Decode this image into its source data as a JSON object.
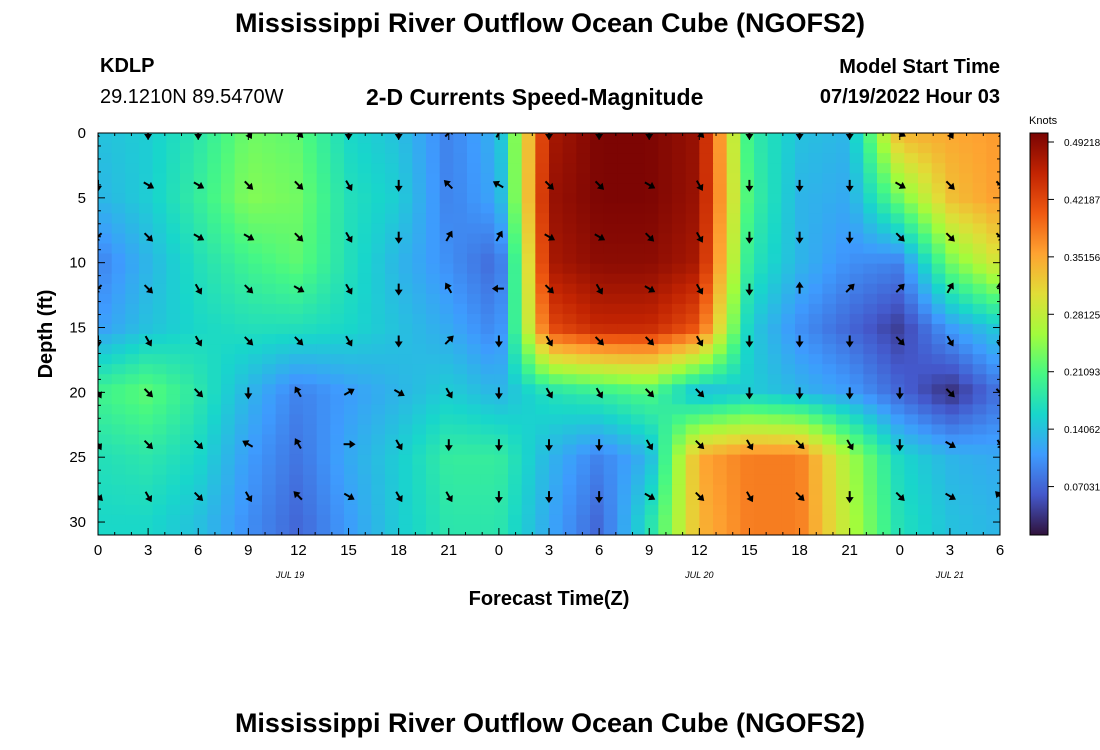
{
  "header": {
    "title": "Mississippi River Outflow Ocean Cube (NGOFS2)",
    "station_id": "KDLP",
    "station_coords": "29.1210N  89.5470W",
    "subtitle": "2-D Currents Speed-Magnitude",
    "model_start_label": "Model Start Time",
    "model_start_value": "07/19/2022 Hour 03"
  },
  "footer": {
    "next_title": "Mississippi River Outflow Ocean Cube (NGOFS2)"
  },
  "chart_data": {
    "type": "heatmap",
    "xlabel": "Forecast Time(Z)",
    "ylabel": "Depth (ft)",
    "x_range_hours": [
      0,
      54
    ],
    "y_range_ft": [
      0,
      31
    ],
    "y_inverted": true,
    "x_ticks": [
      "0",
      "3",
      "6",
      "9",
      "12",
      "15",
      "18",
      "21",
      "0",
      "3",
      "6",
      "9",
      "12",
      "15",
      "18",
      "21",
      "0",
      "3",
      "6"
    ],
    "y_ticks": [
      0,
      5,
      10,
      15,
      20,
      25,
      30
    ],
    "date_labels": [
      {
        "text": "JUL 19",
        "hour": 11.5
      },
      {
        "text": "JUL 20",
        "hour": 36
      },
      {
        "text": "JUL 21",
        "hour": 51
      }
    ],
    "colorbar": {
      "unit": "Knots",
      "ticks": [
        "0.49218",
        "0.42187",
        "0.35156",
        "0.28125",
        "0.21093",
        "0.14062",
        "0.07031"
      ],
      "tick_values": [
        0.49218,
        0.42187,
        0.35156,
        0.28125,
        0.21093,
        0.14062,
        0.07031
      ],
      "range": [
        0,
        0.49218
      ],
      "colors": [
        "#30123b",
        "#4458cb",
        "#3e9bfe",
        "#18d6cb",
        "#46f884",
        "#a2fc3c",
        "#e1dd37",
        "#fea331",
        "#ef5911",
        "#c22402",
        "#7a0403"
      ]
    },
    "sample_depths_ft": [
      0,
      4,
      8,
      12,
      16,
      20,
      24,
      28
    ],
    "speed_grid_depths_ft": [
      0,
      5,
      10,
      15,
      20,
      25,
      30
    ],
    "speed_grid_hours": [
      0,
      3,
      6,
      9,
      12,
      15,
      18,
      21,
      24,
      27,
      30,
      33,
      36,
      39,
      42,
      45,
      48,
      51,
      54
    ],
    "speed_grid": [
      [
        0.13,
        0.14,
        0.17,
        0.22,
        0.21,
        0.15,
        0.13,
        0.08,
        0.12,
        0.46,
        0.49,
        0.49,
        0.47,
        0.18,
        0.13,
        0.12,
        0.33,
        0.34,
        0.35
      ],
      [
        0.12,
        0.14,
        0.18,
        0.23,
        0.22,
        0.16,
        0.14,
        0.08,
        0.11,
        0.47,
        0.49,
        0.49,
        0.47,
        0.19,
        0.12,
        0.11,
        0.22,
        0.32,
        0.35
      ],
      [
        0.08,
        0.12,
        0.16,
        0.19,
        0.21,
        0.16,
        0.12,
        0.09,
        0.06,
        0.46,
        0.48,
        0.48,
        0.46,
        0.17,
        0.12,
        0.09,
        0.08,
        0.22,
        0.29
      ],
      [
        0.1,
        0.13,
        0.15,
        0.16,
        0.16,
        0.15,
        0.13,
        0.11,
        0.08,
        0.41,
        0.44,
        0.44,
        0.4,
        0.14,
        0.09,
        0.06,
        0.03,
        0.1,
        0.14
      ],
      [
        0.19,
        0.21,
        0.17,
        0.12,
        0.08,
        0.1,
        0.12,
        0.14,
        0.12,
        0.16,
        0.18,
        0.2,
        0.12,
        0.14,
        0.12,
        0.1,
        0.06,
        0.02,
        0.07
      ],
      [
        0.16,
        0.17,
        0.15,
        0.1,
        0.07,
        0.11,
        0.14,
        0.18,
        0.18,
        0.12,
        0.08,
        0.12,
        0.34,
        0.37,
        0.37,
        0.25,
        0.15,
        0.12,
        0.11
      ],
      [
        0.15,
        0.15,
        0.13,
        0.09,
        0.06,
        0.1,
        0.14,
        0.17,
        0.17,
        0.11,
        0.06,
        0.16,
        0.33,
        0.37,
        0.37,
        0.26,
        0.16,
        0.13,
        0.12
      ]
    ],
    "arrow_rows": [
      [
        135,
        90,
        90,
        60,
        45,
        90,
        90,
        315,
        300,
        90,
        90,
        90,
        45,
        90,
        90,
        90,
        30,
        60,
        45
      ],
      [
        90,
        30,
        30,
        45,
        45,
        60,
        90,
        225,
        210,
        45,
        45,
        30,
        60,
        90,
        90,
        90,
        30,
        45,
        45
      ],
      [
        135,
        45,
        30,
        30,
        45,
        60,
        90,
        300,
        300,
        30,
        30,
        45,
        60,
        90,
        90,
        90,
        45,
        45,
        45
      ],
      [
        135,
        45,
        60,
        45,
        30,
        60,
        90,
        240,
        180,
        45,
        60,
        30,
        60,
        90,
        270,
        315,
        315,
        300,
        270
      ],
      [
        90,
        60,
        60,
        45,
        45,
        60,
        90,
        315,
        90,
        60,
        45,
        45,
        60,
        90,
        90,
        90,
        45,
        60,
        90
      ],
      [
        60,
        45,
        45,
        90,
        240,
        330,
        30,
        60,
        90,
        60,
        60,
        45,
        45,
        90,
        90,
        90,
        90,
        45,
        45
      ],
      [
        60,
        45,
        45,
        210,
        240,
        0,
        60,
        90,
        90,
        90,
        90,
        60,
        45,
        60,
        45,
        60,
        90,
        30,
        60
      ],
      [
        45,
        60,
        45,
        60,
        225,
        30,
        60,
        60,
        90,
        90,
        90,
        30,
        45,
        60,
        45,
        90,
        45,
        30,
        225
      ]
    ]
  }
}
